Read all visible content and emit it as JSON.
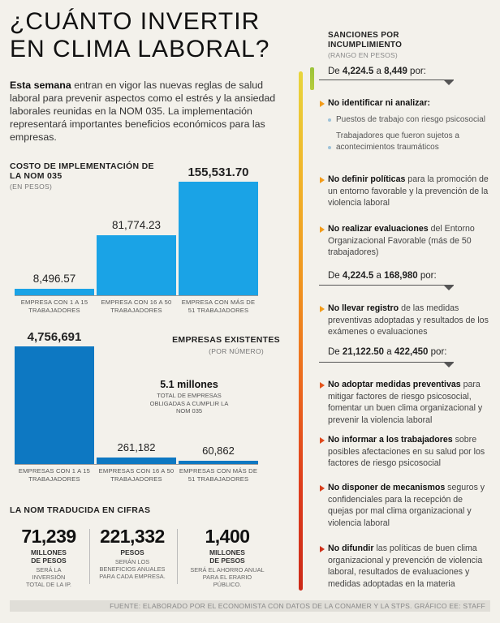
{
  "title": {
    "line1": "¿CUÁNTO INVERTIR",
    "line2": "EN CLIMA LABORAL?"
  },
  "intro": {
    "bold": "Esta semana",
    "text": " entran en vigor las nuevas reglas de salud laboral para prevenir aspectos como el estrés y la ansiedad laborales reunidas en la NOM 035. La implementación representará importantes beneficios económicos para las empresas."
  },
  "costs": {
    "title": "COSTO DE IMPLEMENTACIÓN DE LA NOM 035",
    "subtitle": "(EN PESOS)",
    "bars": [
      {
        "value": "8,496.57",
        "label": "EMPRESA CON 1 A 15 TRABAJADORES",
        "num": 8496.57
      },
      {
        "value": "81,774.23",
        "label": "EMPRESA CON 16 A 50 TRABAJADORES",
        "num": 81774.23
      },
      {
        "value": "155,531.70",
        "label": "EMPRESA CON MÁS DE 51 TRABAJADORES",
        "num": 155531.7
      }
    ]
  },
  "companies": {
    "title": "EMPRESAS EXISTENTES",
    "subtitle": "(POR NÚMERO)",
    "total": "5.1 millones",
    "total_desc": "TOTAL DE EMPRESAS OBLIGADAS A CUMPLIR LA NOM 035",
    "bars": [
      {
        "value": "4,756,691",
        "label": "EMPRESAS CON 1 A 15 TRABAJADORES",
        "num": 4756691
      },
      {
        "value": "261,182",
        "label": "EMPRESAS CON 16 A 50 TRABAJADORES",
        "num": 261182
      },
      {
        "value": "60,862",
        "label": "EMPRESAS CON MÁS DE 51 TRABAJADORES",
        "num": 60862
      }
    ]
  },
  "figures": {
    "title": "LA NOM TRADUCIDA EN CIFRAS",
    "items": [
      {
        "num": "71,239",
        "unit": "MILLONES DE PESOS",
        "desc": "SERÁ LA INVERSIÓN TOTAL DE LA IP."
      },
      {
        "num": "221,332",
        "unit": "PESOS",
        "desc": "SERÁN LOS BENEFICIOS ANUALES PARA CADA EMPRESA."
      },
      {
        "num": "1,400",
        "unit": "MILLONES DE PESOS",
        "desc": "SERÁ EL AHORRO ANUAL PARA EL ERARIO PÚBLICO."
      }
    ]
  },
  "sanctions": {
    "title": "SANCIONES POR INCUMPLIMIENTO",
    "subtitle": "(RANGO EN PESOS)",
    "range1": {
      "from": "4,224.5",
      "to": "8,449"
    },
    "range2": {
      "from": "4,224.5",
      "to": "168,980"
    },
    "range3": {
      "from": "21,122.50",
      "to": "422,450"
    },
    "range_pre": "De ",
    "range_mid": " a ",
    "range_post": " por:",
    "item1": {
      "bold": "No identificar ni analizar:",
      "sub1": "Puestos de trabajo con riesgo psicosocial",
      "sub2": "Trabajadores que fueron sujetos a acontecimientos traumáticos"
    },
    "item2": {
      "bold": "No definir políticas",
      "rest": " para la promoción de un entorno favorable y la prevención de la violencia laboral"
    },
    "item3": {
      "bold": "No realizar evaluaciones",
      "rest": " del Entorno Organizacional Favorable (más de 50 trabajadores)"
    },
    "item4": {
      "bold": "No llevar registro",
      "rest": " de las medidas preventivas adoptadas y resultados de los exámenes o evaluaciones"
    },
    "item5": {
      "bold": "No adoptar medidas preventivas",
      "rest": " para mitigar factores de riesgo psicosocial, fomentar un buen clima organizacional y prevenir la violencia laboral"
    },
    "item6": {
      "bold": "No informar a los trabajadores",
      "rest": " sobre posibles afectaciones en su salud por los factores de riesgo psicosocial"
    },
    "item7": {
      "bold": "No disponer de mecanismos",
      "rest": " seguros y confidenciales para la recepción de quejas por mal clima organizacional y violencia laboral"
    },
    "item8": {
      "bold": "No difundir",
      "rest": " las políticas de buen clima organizacional y prevención de violencia laboral, resultados de evaluaciones y medidas adoptadas en la materia"
    }
  },
  "footer": "FUENTE: ELABORADO POR EL ECONOMISTA CON DATOS DE LA CONAMER Y LA STPS. GRÁFICO EE: STAFF",
  "colors": {
    "bar": "#1aa3e6",
    "bar_dark": "#0d78c2",
    "accent": "#f39c1a"
  },
  "chart_data": [
    {
      "type": "bar",
      "title": "COSTO DE IMPLEMENTACIÓN DE LA NOM 035",
      "ylabel": "(EN PESOS)",
      "categories": [
        "EMPRESA CON 1 A 15 TRABAJADORES",
        "EMPRESA CON 16 A 50 TRABAJADORES",
        "EMPRESA CON MÁS DE 51 TRABAJADORES"
      ],
      "values": [
        8496.57,
        81774.23,
        155531.7
      ]
    },
    {
      "type": "bar",
      "title": "EMPRESAS EXISTENTES",
      "ylabel": "(POR NÚMERO)",
      "categories": [
        "EMPRESAS CON 1 A 15 TRABAJADORES",
        "EMPRESAS CON 16 A 50 TRABAJADORES",
        "EMPRESAS CON MÁS DE 51 TRABAJADORES"
      ],
      "values": [
        4756691,
        261182,
        60862
      ]
    }
  ]
}
